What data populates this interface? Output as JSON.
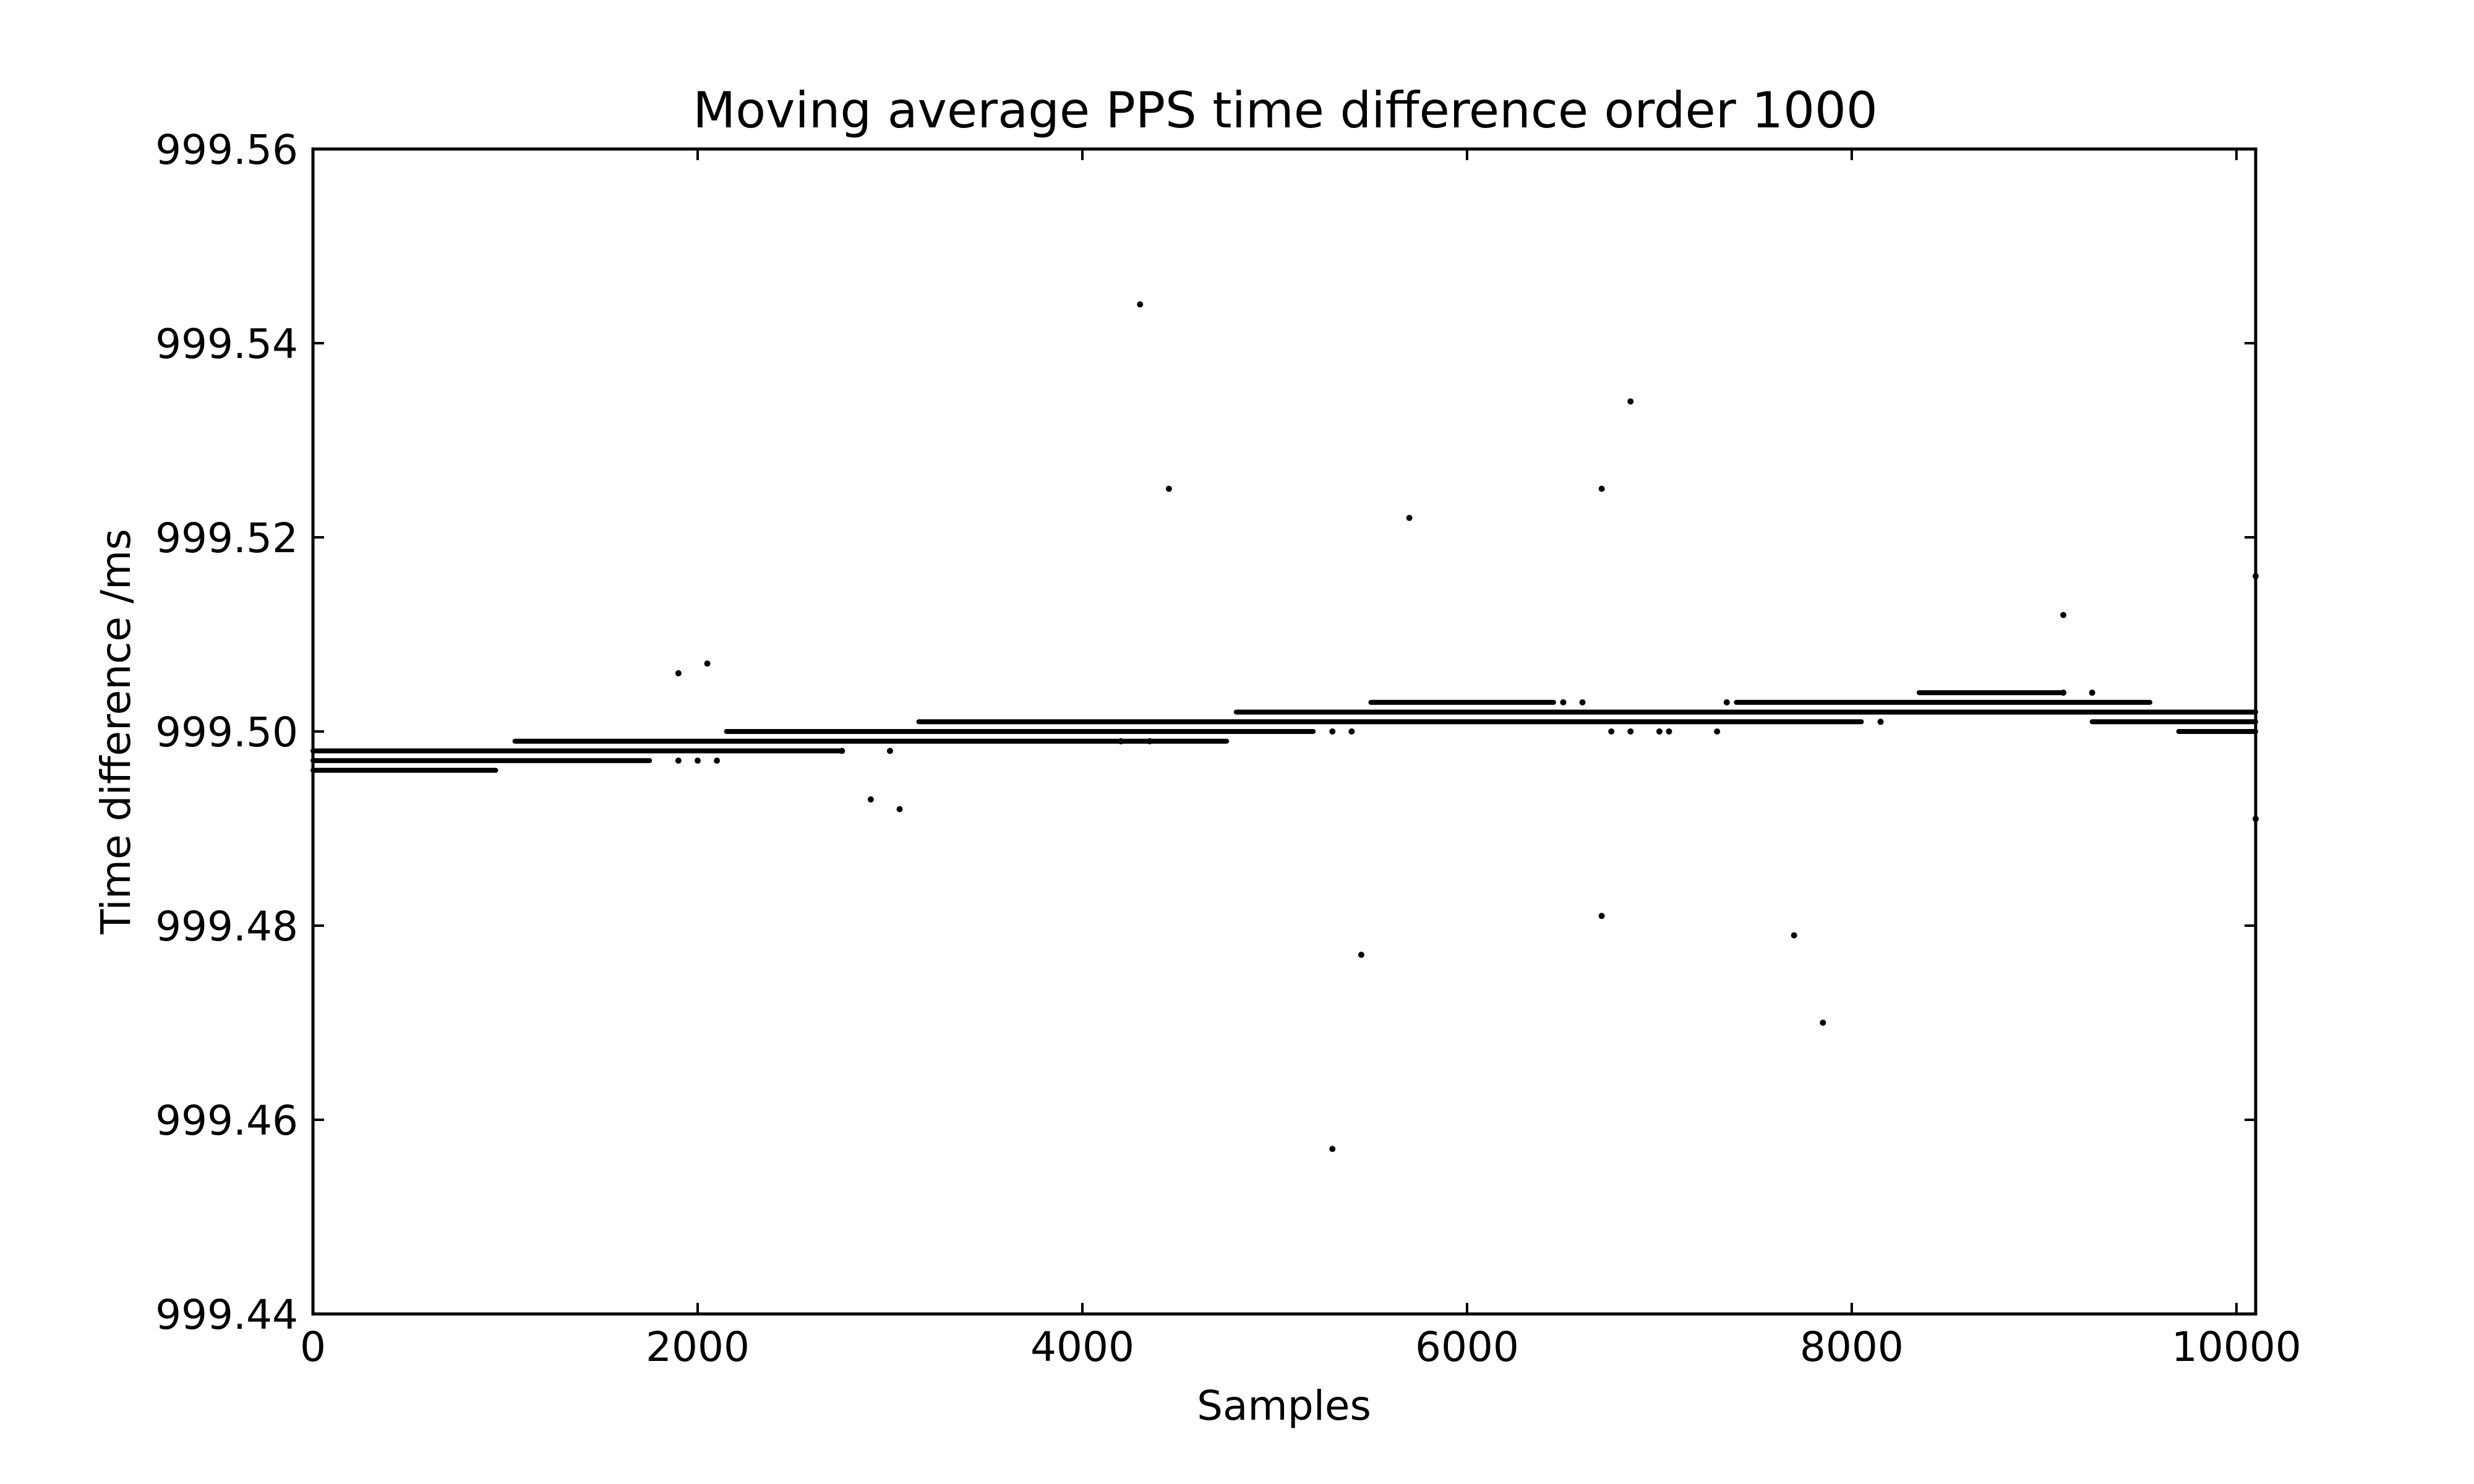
{
  "chart_data": {
    "type": "scatter",
    "title": "Moving average PPS time difference order 1000",
    "xlabel": "Samples",
    "ylabel": "Time difference /ms",
    "xlim": [
      0,
      10100
    ],
    "ylim": [
      999.44,
      999.56
    ],
    "xticks": [
      0,
      2000,
      4000,
      6000,
      8000,
      10000
    ],
    "xtick_labels": [
      "0",
      "2000",
      "4000",
      "6000",
      "8000",
      "10000"
    ],
    "yticks": [
      999.44,
      999.46,
      999.48,
      999.5,
      999.52,
      999.54,
      999.56
    ],
    "ytick_labels": [
      "999.44",
      "999.46",
      "999.48",
      "999.50",
      "999.52",
      "999.54",
      "999.56"
    ],
    "grid": false,
    "legend": "none",
    "marker_color": "#000000",
    "dense_runs": [
      {
        "x_start": 0,
        "x_end": 950,
        "y": 999.496
      },
      {
        "x_start": 0,
        "x_end": 1750,
        "y": 999.497
      },
      {
        "x_start": 0,
        "x_end": 2750,
        "y": 999.498
      },
      {
        "x_start": 1050,
        "x_end": 4750,
        "y": 999.499
      },
      {
        "x_start": 2150,
        "x_end": 5200,
        "y": 999.5
      },
      {
        "x_start": 3150,
        "x_end": 8050,
        "y": 999.501
      },
      {
        "x_start": 4800,
        "x_end": 10100,
        "y": 999.502
      },
      {
        "x_start": 5500,
        "x_end": 6450,
        "y": 999.503
      },
      {
        "x_start": 7400,
        "x_end": 9550,
        "y": 999.503
      },
      {
        "x_start": 8350,
        "x_end": 9100,
        "y": 999.504
      },
      {
        "x_start": 9250,
        "x_end": 10100,
        "y": 999.501
      },
      {
        "x_start": 9700,
        "x_end": 10100,
        "y": 999.5
      }
    ],
    "points": [
      {
        "x": 1900,
        "y": 999.497
      },
      {
        "x": 2000,
        "y": 999.497
      },
      {
        "x": 2100,
        "y": 999.497
      },
      {
        "x": 2750,
        "y": 999.498
      },
      {
        "x": 3000,
        "y": 999.498
      },
      {
        "x": 4200,
        "y": 999.499
      },
      {
        "x": 4350,
        "y": 999.499
      },
      {
        "x": 5300,
        "y": 999.5
      },
      {
        "x": 5400,
        "y": 999.5
      },
      {
        "x": 6750,
        "y": 999.5
      },
      {
        "x": 6850,
        "y": 999.5
      },
      {
        "x": 7000,
        "y": 999.5
      },
      {
        "x": 7050,
        "y": 999.5
      },
      {
        "x": 7300,
        "y": 999.5
      },
      {
        "x": 8150,
        "y": 999.501
      },
      {
        "x": 6500,
        "y": 999.503
      },
      {
        "x": 6600,
        "y": 999.503
      },
      {
        "x": 7350,
        "y": 999.503
      },
      {
        "x": 9100,
        "y": 999.504
      },
      {
        "x": 9250,
        "y": 999.504
      },
      {
        "x": 1900,
        "y": 999.506
      },
      {
        "x": 2050,
        "y": 999.507
      },
      {
        "x": 2900,
        "y": 999.493
      },
      {
        "x": 3050,
        "y": 999.492
      },
      {
        "x": 4300,
        "y": 999.544
      },
      {
        "x": 4450,
        "y": 999.525
      },
      {
        "x": 5300,
        "y": 999.457
      },
      {
        "x": 5450,
        "y": 999.477
      },
      {
        "x": 5700,
        "y": 999.522
      },
      {
        "x": 6700,
        "y": 999.525
      },
      {
        "x": 6850,
        "y": 999.534
      },
      {
        "x": 6700,
        "y": 999.481
      },
      {
        "x": 7700,
        "y": 999.479
      },
      {
        "x": 7850,
        "y": 999.47
      },
      {
        "x": 9100,
        "y": 999.512
      },
      {
        "x": 10100,
        "y": 999.516
      },
      {
        "x": 10100,
        "y": 999.491
      }
    ]
  }
}
